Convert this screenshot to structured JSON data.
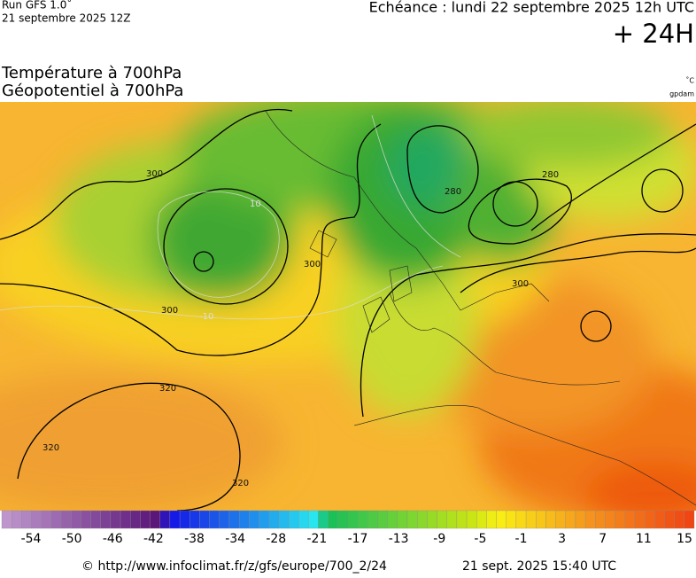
{
  "header": {
    "run": "Run GFS 1.0˚",
    "run_date": "21 septembre 2025 12Z",
    "valid": "Echéance : lundi 22 septembre 2025 12h UTC",
    "lead": "+ 24H",
    "title_line1": "Température à 700hPa",
    "title_line2": "Géopotentiel à 700hPa",
    "unit_temp": "˚C",
    "unit_geo": "gpdam"
  },
  "contour_labels": [
    "300",
    "300",
    "300",
    "300",
    "320",
    "320",
    "320",
    "280",
    "280",
    "10",
    "-10"
  ],
  "colorbar": {
    "labels": [
      "-54",
      "-50",
      "-46",
      "-42",
      "-38",
      "-34",
      "-28",
      "-21",
      "-17",
      "-13",
      "-9",
      "-5",
      "-1",
      "3",
      "7",
      "11",
      "15"
    ]
  },
  "footer": {
    "url": "© http://www.infoclimat.fr/z/gfs/europe/700_2/24",
    "timestamp": "21 sept. 2025 15:40 UTC"
  }
}
